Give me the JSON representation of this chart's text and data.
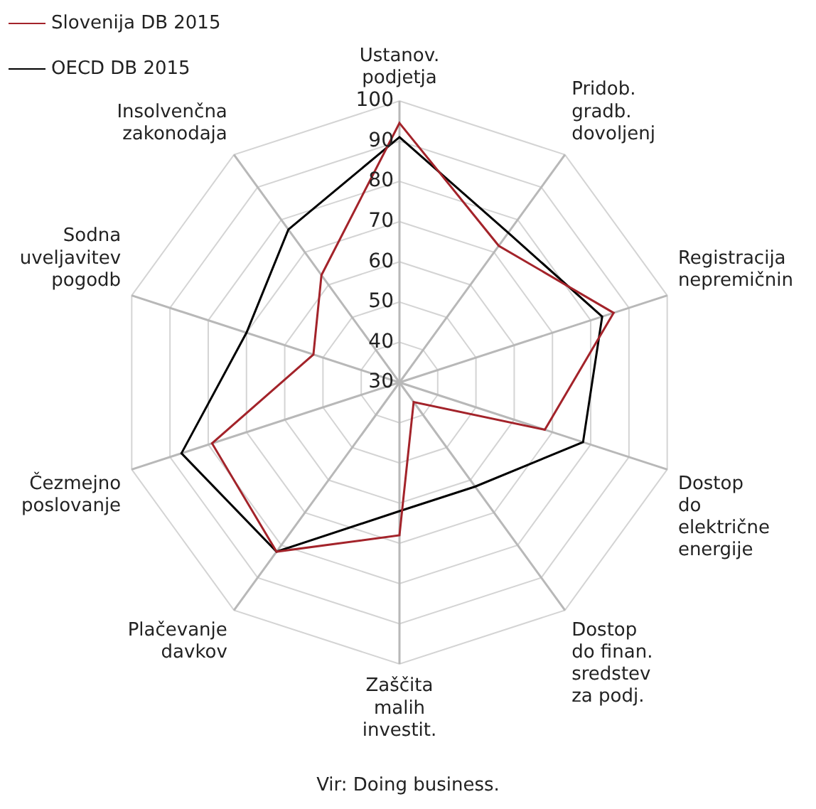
{
  "chart_data": {
    "type": "radar",
    "categories": [
      "Ustanov.\npodjetja",
      "Pridob.\ngradb.\ndovoljenj",
      "Registracija\nnepremičnin",
      "Dostop\ndo\nelektrične\nenergije",
      "Dostop\ndo finan.\nsredstev\nza podj.",
      "Zaščita\nmalih\ninvestit.",
      "Plačevanje\ndavkov",
      "Čezmejno\nposlovanje",
      "Sodna\nuveljavitev\npogodb",
      "Insolvenčna\nzakonodaja"
    ],
    "series": [
      {
        "name": "Slovenija DB 2015",
        "color": "#a3232a",
        "values": [
          94.5,
          72,
          86,
          68,
          36,
          68,
          82,
          79,
          52.5,
          63
        ]
      },
      {
        "name": "OECD DB 2015",
        "color": "#000000",
        "values": [
          91,
          76,
          83,
          78,
          62,
          62,
          82,
          87,
          70,
          77
        ]
      }
    ],
    "ylim": [
      30,
      100
    ],
    "yticks": [
      30,
      40,
      50,
      60,
      70,
      80,
      90,
      100
    ],
    "grid": true,
    "legend": "top left",
    "marker": "none",
    "annotations": [
      "Vir: Doing business."
    ]
  }
}
